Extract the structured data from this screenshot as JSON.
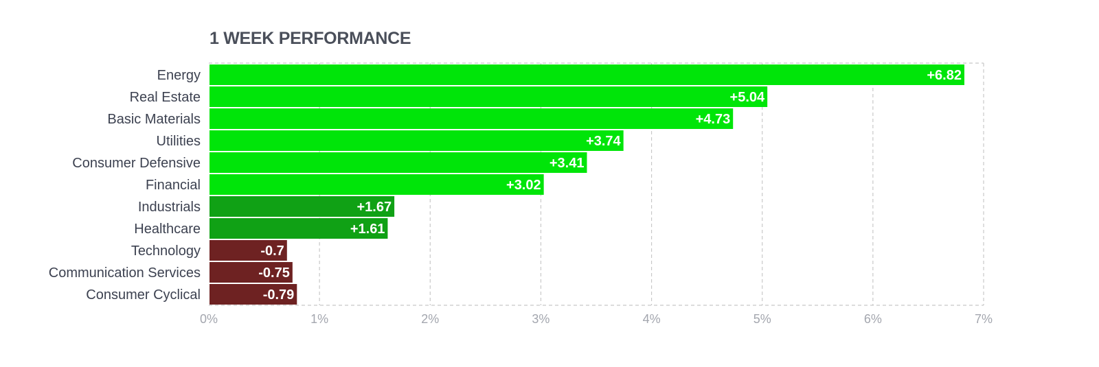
{
  "chart_data": {
    "type": "bar",
    "orientation": "horizontal",
    "title": "1 WEEK PERFORMANCE",
    "categories": [
      "Energy",
      "Real Estate",
      "Basic Materials",
      "Utilities",
      "Consumer Defensive",
      "Financial",
      "Industrials",
      "Healthcare",
      "Technology",
      "Communication Services",
      "Consumer Cyclical"
    ],
    "values": [
      6.82,
      5.04,
      4.73,
      3.74,
      3.41,
      3.02,
      1.67,
      1.61,
      -0.7,
      -0.75,
      -0.79
    ],
    "value_labels": [
      "+6.82",
      "+5.04",
      "+4.73",
      "+3.74",
      "+3.41",
      "+3.02",
      "+1.67",
      "+1.61",
      "-0.7",
      "-0.75",
      "-0.79"
    ],
    "xlim": [
      0,
      7
    ],
    "x_ticks": [
      0,
      1,
      2,
      3,
      4,
      5,
      6,
      7
    ],
    "x_tick_labels": [
      "0%",
      "1%",
      "2%",
      "3%",
      "4%",
      "5%",
      "6%",
      "7%"
    ],
    "bar_length": "absolute value",
    "grid": true,
    "legend": "none",
    "colors": {
      "strong_positive": "#00e509",
      "positive": "#10a115",
      "negative": "#6e2222",
      "title": "#4a4f5a",
      "category_text": "#3c4150",
      "tick_text": "#a3a6ae",
      "grid": "#c8c8c8"
    },
    "color_rule": "value >= 2: strong_positive; 0 <= value < 2: positive; value < 0: negative"
  }
}
